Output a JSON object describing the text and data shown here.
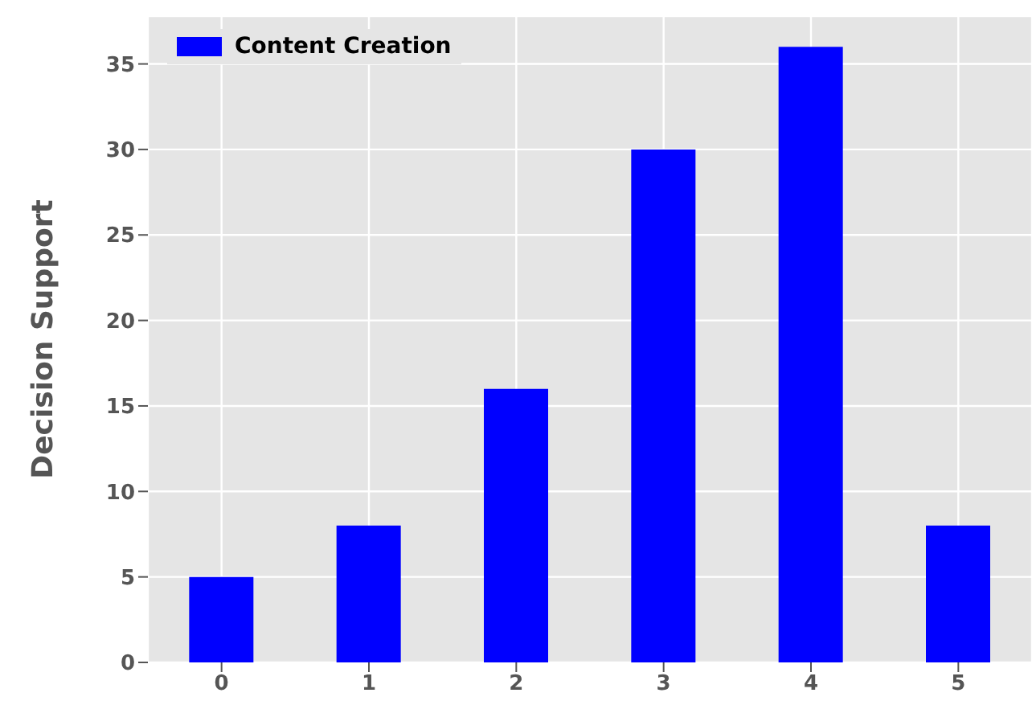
{
  "chart_data": {
    "type": "bar",
    "ylabel": "Decision Support",
    "categories": [
      "0",
      "1",
      "2",
      "3",
      "4",
      "5"
    ],
    "series": [
      {
        "name": "Content Creation",
        "color": "#0000ff",
        "values": [
          5,
          8,
          16,
          30,
          36,
          8
        ]
      }
    ],
    "ylim": [
      0,
      37.8
    ],
    "yticks": [
      0,
      5,
      10,
      15,
      20,
      25,
      30,
      35
    ],
    "grid": true,
    "legend": "top left"
  }
}
